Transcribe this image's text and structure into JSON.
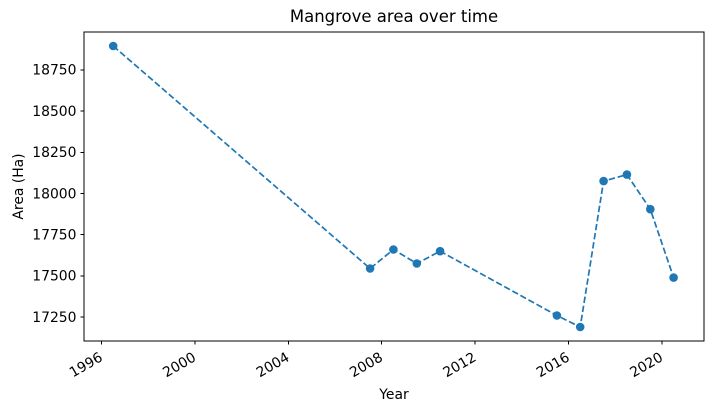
{
  "chart_data": {
    "type": "line",
    "title": "Mangrove area over time",
    "xlabel": "Year",
    "ylabel": "Area (Ha)",
    "points": [
      {
        "year": 1996,
        "x": 1996.5,
        "area": 18895
      },
      {
        "year": 2007,
        "x": 2007.5,
        "area": 17545
      },
      {
        "year": 2008,
        "x": 2008.5,
        "area": 17660
      },
      {
        "year": 2009,
        "x": 2009.5,
        "area": 17575
      },
      {
        "year": 2010,
        "x": 2010.5,
        "area": 17650
      },
      {
        "year": 2015,
        "x": 2015.5,
        "area": 17260
      },
      {
        "year": 2016,
        "x": 2016.5,
        "area": 17190
      },
      {
        "year": 2017,
        "x": 2017.5,
        "area": 18075
      },
      {
        "year": 2018,
        "x": 2018.5,
        "area": 18115
      },
      {
        "year": 2019,
        "x": 2019.5,
        "area": 17905
      },
      {
        "year": 2020,
        "x": 2020.5,
        "area": 17490
      }
    ],
    "xticks": [
      1996,
      2000,
      2004,
      2008,
      2012,
      2016,
      2020
    ],
    "yticks": [
      17250,
      17500,
      17750,
      18000,
      18250,
      18500,
      18750
    ],
    "xlim": [
      1995.25,
      2021.8
    ],
    "ylim": [
      17105,
      18980
    ],
    "grid": false,
    "legend": "none",
    "line_color": "#1f77b4",
    "line_style": "dashed",
    "marker": "circle",
    "xtick_rotation_deg": 30,
    "background": "#ffffff",
    "text_color": "#000000"
  }
}
